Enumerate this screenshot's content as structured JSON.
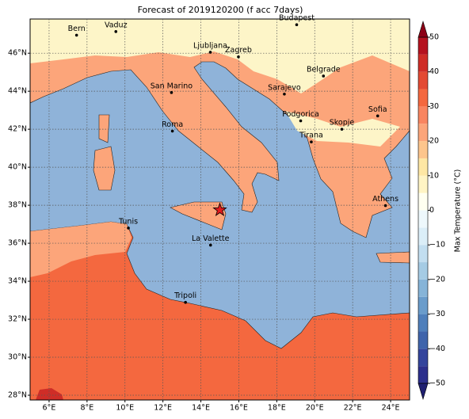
{
  "chart_data": {
    "type": "map",
    "title": "Forecast of 2019120200 (f acc 7days)",
    "xlim": [
      5,
      25
    ],
    "ylim": [
      27.75,
      47.8
    ],
    "xticks": [
      {
        "value": 6,
        "label": "6°E"
      },
      {
        "value": 8,
        "label": "8°E"
      },
      {
        "value": 10,
        "label": "10°E"
      },
      {
        "value": 12,
        "label": "12°E"
      },
      {
        "value": 14,
        "label": "14°E"
      },
      {
        "value": 16,
        "label": "16°E"
      },
      {
        "value": 18,
        "label": "18°E"
      },
      {
        "value": 20,
        "label": "20°E"
      },
      {
        "value": 22,
        "label": "22°E"
      },
      {
        "value": 24,
        "label": "24°E"
      }
    ],
    "yticks": [
      {
        "value": 28,
        "label": "28°N"
      },
      {
        "value": 30,
        "label": "30°N"
      },
      {
        "value": 32,
        "label": "32°N"
      },
      {
        "value": 34,
        "label": "34°N"
      },
      {
        "value": 36,
        "label": "36°N"
      },
      {
        "value": 38,
        "label": "38°N"
      },
      {
        "value": 40,
        "label": "40°N"
      },
      {
        "value": 42,
        "label": "42°N"
      },
      {
        "value": 44,
        "label": "44°N"
      },
      {
        "value": 46,
        "label": "46°N"
      }
    ],
    "grid": true,
    "cities": [
      {
        "name": "Bern",
        "lon": 7.45,
        "lat": 46.95
      },
      {
        "name": "Vaduz",
        "lon": 9.52,
        "lat": 47.14
      },
      {
        "name": "Budapest",
        "lon": 19.05,
        "lat": 47.5
      },
      {
        "name": "Ljubljana",
        "lon": 14.5,
        "lat": 46.05
      },
      {
        "name": "Zagreb",
        "lon": 15.98,
        "lat": 45.81
      },
      {
        "name": "Belgrade",
        "lon": 20.46,
        "lat": 44.8
      },
      {
        "name": "San Marino",
        "lon": 12.45,
        "lat": 43.93
      },
      {
        "name": "Sarajevo",
        "lon": 18.4,
        "lat": 43.85
      },
      {
        "name": "Sofia",
        "lon": 23.32,
        "lat": 42.7
      },
      {
        "name": "Podgorica",
        "lon": 19.26,
        "lat": 42.44
      },
      {
        "name": "Skopje",
        "lon": 21.43,
        "lat": 42.0
      },
      {
        "name": "Roma",
        "lon": 12.5,
        "lat": 41.9
      },
      {
        "name": "Tirana",
        "lon": 19.82,
        "lat": 41.33
      },
      {
        "name": "Athens",
        "lon": 23.73,
        "lat": 37.98
      },
      {
        "name": "Tunis",
        "lon": 10.18,
        "lat": 36.8
      },
      {
        "name": "La Valette",
        "lon": 14.51,
        "lat": 35.9
      },
      {
        "name": "Tripoli",
        "lon": 13.19,
        "lat": 32.89
      }
    ],
    "marker": {
      "lon": 15.0,
      "lat": 37.75,
      "color": "#e31a1c"
    },
    "colorbar": {
      "label": "Max Temperature (°C)",
      "lim": [
        -50,
        50
      ],
      "levels": [
        -50,
        -45,
        -40,
        -35,
        -30,
        -25,
        -20,
        -15,
        -10,
        -5,
        0,
        5,
        10,
        15,
        20,
        25,
        30,
        35,
        40,
        45,
        50
      ],
      "colors": [
        "#2c2f8c",
        "#33449c",
        "#3f64ab",
        "#4f7fbb",
        "#6a9ccb",
        "#86b4d8",
        "#a5cbe4",
        "#c2def0",
        "#dbeef8",
        "#eef8fc",
        "#fffff0",
        "#fff4c4",
        "#fee7a4",
        "#fdc58c",
        "#fca57a",
        "#f98560",
        "#f4683f",
        "#e34a33",
        "#cf2d27",
        "#b5121f"
      ],
      "extend_colors": [
        "#1f1f70",
        "#8c0016"
      ],
      "ticks": [
        {
          "value": -50,
          "label": "−50"
        },
        {
          "value": -40,
          "label": "−40"
        },
        {
          "value": -30,
          "label": "−30"
        },
        {
          "value": -20,
          "label": "−20"
        },
        {
          "value": -10,
          "label": "−10"
        },
        0,
        10,
        20,
        30,
        40,
        50
      ]
    }
  }
}
